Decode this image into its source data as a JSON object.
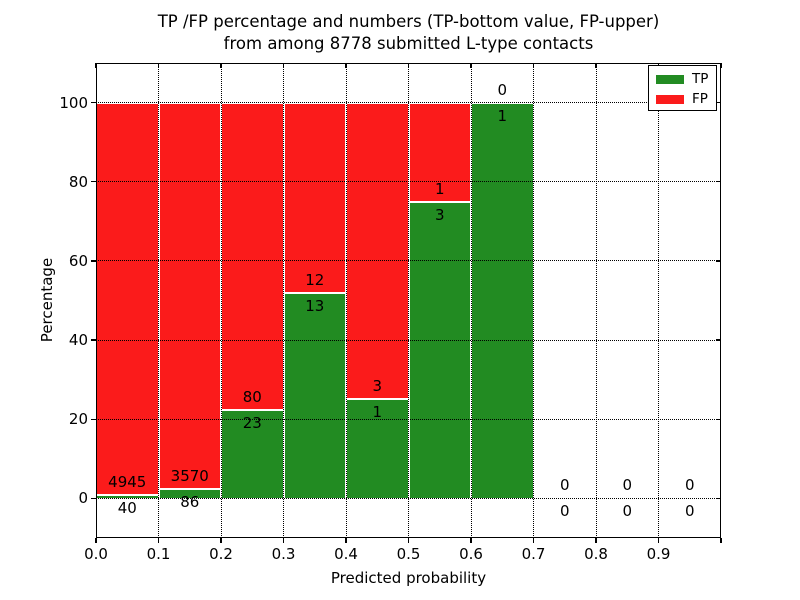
{
  "figure": {
    "title_line1": "TP /FP percentage and numbers (TP-bottom value, FP-upper)",
    "title_line2": "from among 8778 submitted L-type contacts"
  },
  "axes": {
    "xlabel": "Predicted probability",
    "ylabel": "Percentage",
    "x_tick_labels": [
      "0.0",
      "0.1",
      "0.2",
      "0.3",
      "0.4",
      "0.5",
      "0.6",
      "0.7",
      "0.8",
      "0.9"
    ],
    "x_tick_values": [
      0,
      0.1,
      0.2,
      0.3,
      0.4,
      0.5,
      0.6,
      0.7,
      0.8,
      0.9
    ],
    "y_tick_labels": [
      "0",
      "20",
      "40",
      "60",
      "80",
      "100"
    ],
    "y_tick_values": [
      0,
      20,
      40,
      60,
      80,
      100
    ],
    "xlim": [
      0,
      1
    ],
    "ylim": [
      -10,
      110
    ],
    "grid": "dotted both axes"
  },
  "legend": {
    "position": "upper right",
    "items": [
      {
        "label": "TP",
        "color": "#228b22"
      },
      {
        "label": "FP",
        "color": "#fb1b1b"
      }
    ]
  },
  "colors": {
    "tp": "#228b22",
    "fp": "#fb1b1b",
    "background": "#ffffff",
    "text": "#000000",
    "bar_edge": "#ffffff"
  },
  "chart_data": {
    "type": "bar",
    "variant": "stacked-percentage-histogram",
    "title": "TP /FP percentage and numbers (TP-bottom value, FP-upper) from among 8778 submitted L-type contacts",
    "xlabel": "Predicted probability",
    "ylabel": "Percentage",
    "xlim": [
      0,
      1
    ],
    "ylim": [
      -10,
      110
    ],
    "bin_width": 0.1,
    "categories": [
      "0.0-0.1",
      "0.1-0.2",
      "0.2-0.3",
      "0.3-0.4",
      "0.4-0.5",
      "0.5-0.6",
      "0.6-0.7",
      "0.7-0.8",
      "0.8-0.9",
      "0.9-1.0"
    ],
    "series": [
      {
        "name": "TP",
        "color": "#228b22",
        "counts": [
          40,
          86,
          23,
          13,
          1,
          3,
          1,
          0,
          0,
          0
        ]
      },
      {
        "name": "FP",
        "color": "#fb1b1b",
        "counts": [
          4945,
          3570,
          80,
          12,
          3,
          1,
          0,
          0,
          0,
          0
        ]
      }
    ],
    "tp_percent_of_bin": [
      0.8,
      2.35,
      22.33,
      52.0,
      25.0,
      75.0,
      100.0,
      null,
      null,
      null
    ],
    "fp_percent_of_bin": [
      99.2,
      97.65,
      77.67,
      48.0,
      75.0,
      25.0,
      0.0,
      null,
      null,
      null
    ],
    "total_contacts": 8778,
    "annotation_rule": "FP count printed just above TP/FP boundary, TP count just below it; empty bins show 0 above and below the zero line"
  }
}
